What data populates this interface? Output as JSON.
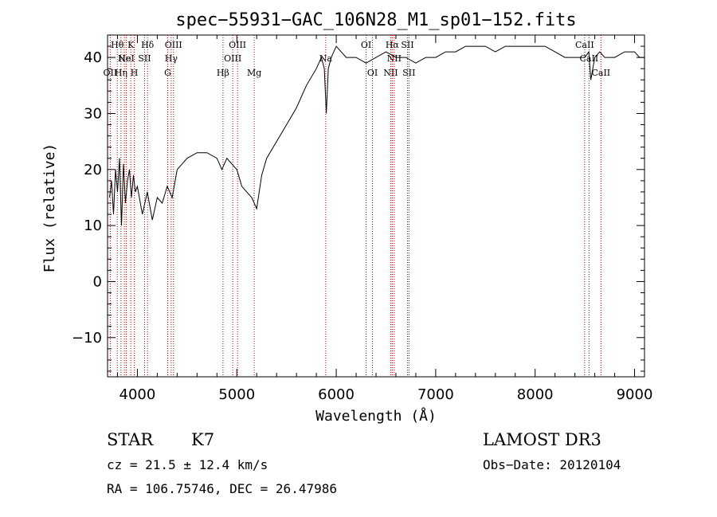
{
  "chart_data": {
    "type": "line",
    "title": "spec−55931−GAC_106N28_M1_sp01−152.fits",
    "xlabel": "Wavelength (Å)",
    "ylabel": "Flux (relative)",
    "xlim": [
      3700,
      9100
    ],
    "ylim": [
      -17,
      44
    ],
    "xticks": [
      4000,
      5000,
      6000,
      7000,
      8000,
      9000
    ],
    "xtick_labels": [
      "4000",
      "5000",
      "6000",
      "7000",
      "8000",
      "9000"
    ],
    "yticks": [
      -10,
      0,
      10,
      20,
      30,
      40
    ],
    "ytick_labels": [
      "−10",
      "0",
      "10",
      "20",
      "30",
      "40"
    ],
    "grid": false,
    "series": [
      {
        "name": "flux",
        "color": "#000000",
        "x": [
          3720,
          3740,
          3760,
          3780,
          3800,
          3820,
          3840,
          3860,
          3880,
          3900,
          3920,
          3940,
          3960,
          3980,
          4000,
          4050,
          4100,
          4150,
          4200,
          4250,
          4300,
          4350,
          4400,
          4450,
          4500,
          4600,
          4700,
          4800,
          4850,
          4900,
          4950,
          5000,
          5050,
          5100,
          5150,
          5200,
          5250,
          5300,
          5400,
          5500,
          5600,
          5700,
          5800,
          5850,
          5880,
          5900,
          5920,
          5950,
          6000,
          6050,
          6100,
          6200,
          6300,
          6400,
          6500,
          6600,
          6700,
          6800,
          6900,
          7000,
          7100,
          7200,
          7300,
          7400,
          7500,
          7600,
          7700,
          7800,
          7900,
          8000,
          8100,
          8200,
          8300,
          8400,
          8500,
          8540,
          8560,
          8600,
          8650,
          8700,
          8800,
          8900,
          9000,
          9050,
          9100
        ],
        "y": [
          15,
          18,
          12,
          20,
          16,
          22,
          10,
          21,
          14,
          18,
          20,
          15,
          19,
          16,
          17,
          12,
          16,
          11,
          15,
          14,
          17,
          15,
          20,
          21,
          22,
          23,
          23,
          22,
          20,
          22,
          21,
          20,
          17,
          16,
          15,
          13,
          19,
          22,
          25,
          28,
          31,
          35,
          38,
          40,
          38,
          30,
          38,
          40,
          42,
          41,
          40,
          40,
          39,
          40,
          41,
          40,
          40,
          39,
          40,
          40,
          41,
          41,
          42,
          42,
          42,
          41,
          42,
          42,
          42,
          42,
          42,
          41,
          40,
          40,
          40,
          41,
          36,
          40,
          41,
          40,
          40,
          41,
          41,
          40,
          40
        ]
      }
    ],
    "lines": [
      {
        "x": 3727,
        "label": "OII",
        "row": 2
      },
      {
        "x": 3798,
        "label": "Hθ",
        "row": 0
      },
      {
        "x": 3835,
        "label": "Hη",
        "row": 2
      },
      {
        "x": 3869,
        "label": "Ne",
        "row": 1
      },
      {
        "x": 3889,
        "label": "HeI",
        "row": 1
      },
      {
        "x": 3934,
        "label": "K",
        "row": 0
      },
      {
        "x": 3969,
        "label": "H",
        "row": 2
      },
      {
        "x": 4072,
        "label": "SII",
        "row": 1
      },
      {
        "x": 4102,
        "label": "Hδ",
        "row": 0
      },
      {
        "x": 4305,
        "label": "G",
        "row": 2
      },
      {
        "x": 4340,
        "label": "Hγ",
        "row": 1
      },
      {
        "x": 4363,
        "label": "OIII",
        "row": 0
      },
      {
        "x": 4861,
        "label": "Hβ",
        "row": 2
      },
      {
        "x": 4959,
        "label": "OIII",
        "row": 1
      },
      {
        "x": 5007,
        "label": "OIII",
        "row": 0
      },
      {
        "x": 5175,
        "label": "Mg",
        "row": 2
      },
      {
        "x": 5894,
        "label": "Na",
        "row": 1
      },
      {
        "x": 6300,
        "label": "OI",
        "row": 0
      },
      {
        "x": 6364,
        "label": "OI",
        "row": 2
      },
      {
        "x": 6548,
        "label": "NII",
        "row": 2
      },
      {
        "x": 6563,
        "label": "Hα",
        "row": 0
      },
      {
        "x": 6583,
        "label": "NII",
        "row": 1
      },
      {
        "x": 6716,
        "label": "SII",
        "row": 0
      },
      {
        "x": 6731,
        "label": "SII",
        "row": 2
      },
      {
        "x": 8498,
        "label": "CaII",
        "row": 0
      },
      {
        "x": 8542,
        "label": "CaII",
        "row": 1
      },
      {
        "x": 8662,
        "label": "CaII",
        "row": 2
      }
    ]
  },
  "info": {
    "class": "STAR",
    "subclass": "K7",
    "survey": "LAMOST DR3",
    "cz": "cz = 21.5 ± 12.4 km/s",
    "obs_date": "Obs−Date: 20120104",
    "coords": "RA = 106.75746, DEC =  26.47986"
  },
  "colors": {
    "spectrum": "#000000",
    "line_markers": "#b00000",
    "axes": "#000000"
  }
}
